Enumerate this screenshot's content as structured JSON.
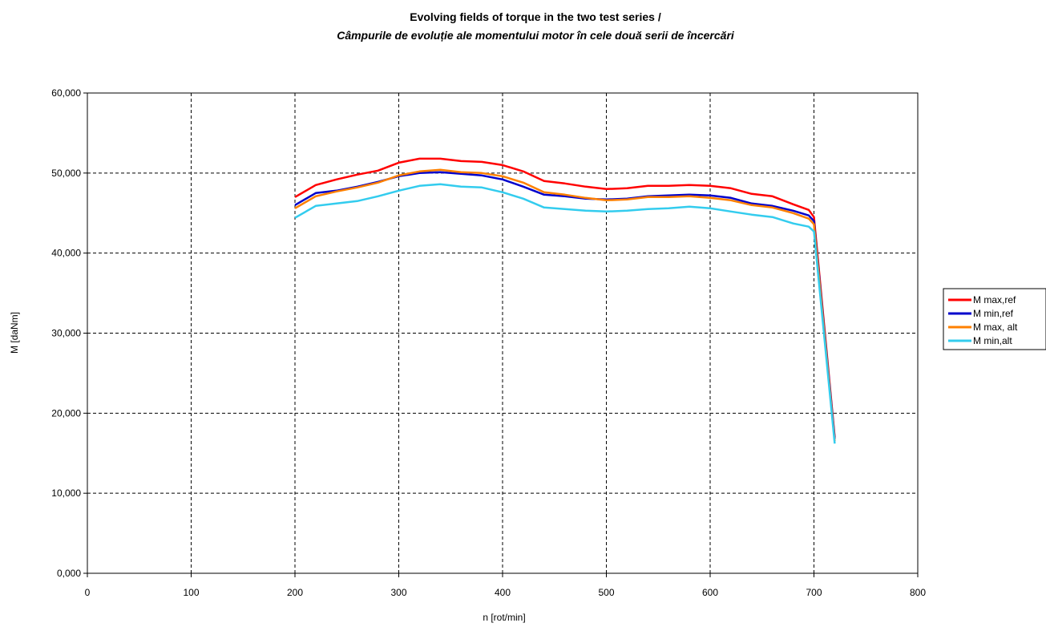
{
  "chart_data": {
    "type": "line",
    "title": "Evolving fields of torque in the two test series /",
    "subtitle": "Câmpurile de evoluție ale momentului motor în cele două serii de încercări",
    "xlabel": "n [rot/min]",
    "ylabel": "M [daNm]",
    "xlim": [
      0,
      800
    ],
    "ylim": [
      0,
      60
    ],
    "x_ticks": [
      "0",
      "100",
      "200",
      "300",
      "400",
      "500",
      "600",
      "700",
      "800"
    ],
    "y_ticks": [
      "0,000",
      "10,000",
      "20,000",
      "30,000",
      "40,000",
      "50,000",
      "60,000"
    ],
    "grid": true,
    "legend_position": "right",
    "x": [
      200,
      220,
      240,
      260,
      280,
      300,
      320,
      340,
      360,
      380,
      400,
      420,
      440,
      460,
      480,
      500,
      520,
      540,
      560,
      580,
      600,
      620,
      640,
      660,
      680,
      695,
      700,
      720
    ],
    "series": [
      {
        "name": "M max,ref",
        "color": "#ff0000",
        "values": [
          47.0,
          48.5,
          49.2,
          49.8,
          50.3,
          51.3,
          51.8,
          51.8,
          51.5,
          51.4,
          51.0,
          50.2,
          49.0,
          48.7,
          48.3,
          48.0,
          48.1,
          48.4,
          48.4,
          48.5,
          48.4,
          48.1,
          47.4,
          47.1,
          46.1,
          45.4,
          44.5,
          17.0
        ]
      },
      {
        "name": "M min,ref",
        "color": "#0000cc",
        "values": [
          46.0,
          47.5,
          47.8,
          48.3,
          48.9,
          49.6,
          50.0,
          50.1,
          49.9,
          49.7,
          49.2,
          48.3,
          47.3,
          47.1,
          46.8,
          46.7,
          46.8,
          47.1,
          47.2,
          47.3,
          47.2,
          46.9,
          46.2,
          45.9,
          45.3,
          44.7,
          44.0,
          16.8
        ]
      },
      {
        "name": "M max, alt",
        "color": "#ff8000",
        "values": [
          45.6,
          47.1,
          47.7,
          48.2,
          48.8,
          49.7,
          50.2,
          50.4,
          50.1,
          50.0,
          49.6,
          48.8,
          47.6,
          47.3,
          46.9,
          46.6,
          46.7,
          47.0,
          47.0,
          47.1,
          46.9,
          46.6,
          46.0,
          45.7,
          45.0,
          44.3,
          43.6,
          16.5
        ]
      },
      {
        "name": "M min,alt",
        "color": "#33ccee",
        "values": [
          44.4,
          45.9,
          46.2,
          46.5,
          47.1,
          47.8,
          48.4,
          48.6,
          48.3,
          48.2,
          47.6,
          46.8,
          45.7,
          45.5,
          45.3,
          45.2,
          45.3,
          45.5,
          45.6,
          45.8,
          45.6,
          45.2,
          44.8,
          44.5,
          43.7,
          43.3,
          42.7,
          16.2
        ]
      }
    ]
  }
}
